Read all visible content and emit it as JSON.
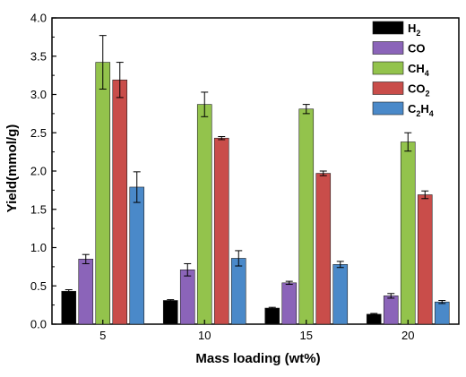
{
  "chart_data": {
    "type": "bar",
    "xlabel": "Mass loading (wt%)",
    "ylabel": "Yield(mmol/g)",
    "categories": [
      "5",
      "10",
      "15",
      "20"
    ],
    "ylim": [
      0,
      4
    ],
    "yticks": [
      "0.0",
      "0.5",
      "1.0",
      "1.5",
      "2.0",
      "2.5",
      "3.0",
      "3.5",
      "4.0"
    ],
    "legend_position": "top-right",
    "series": [
      {
        "name": "H2",
        "label_base": "H",
        "label_sub": "2",
        "color": "#000000",
        "values": [
          0.43,
          0.31,
          0.21,
          0.13
        ],
        "errors": [
          0.02,
          0.01,
          0.01,
          0.01
        ]
      },
      {
        "name": "CO",
        "label_base": "CO",
        "label_sub": "",
        "color": "#8b64b9",
        "values": [
          0.85,
          0.71,
          0.54,
          0.37
        ],
        "errors": [
          0.06,
          0.08,
          0.02,
          0.03
        ]
      },
      {
        "name": "CH4",
        "label_base": "CH",
        "label_sub": "4",
        "color": "#93c34c",
        "values": [
          3.42,
          2.87,
          2.81,
          2.38
        ],
        "errors": [
          0.35,
          0.16,
          0.06,
          0.12
        ]
      },
      {
        "name": "CO2",
        "label_base": "CO",
        "label_sub": "2",
        "color": "#c94d4a",
        "values": [
          3.19,
          2.43,
          1.97,
          1.69
        ],
        "errors": [
          0.23,
          0.02,
          0.03,
          0.05
        ]
      },
      {
        "name": "C2H4",
        "label_base": "C",
        "label_sub": "2",
        "label_base2": "H",
        "label_sub2": "4",
        "color": "#4a89c9",
        "values": [
          1.79,
          0.86,
          0.78,
          0.29
        ],
        "errors": [
          0.2,
          0.1,
          0.04,
          0.02
        ]
      }
    ]
  }
}
